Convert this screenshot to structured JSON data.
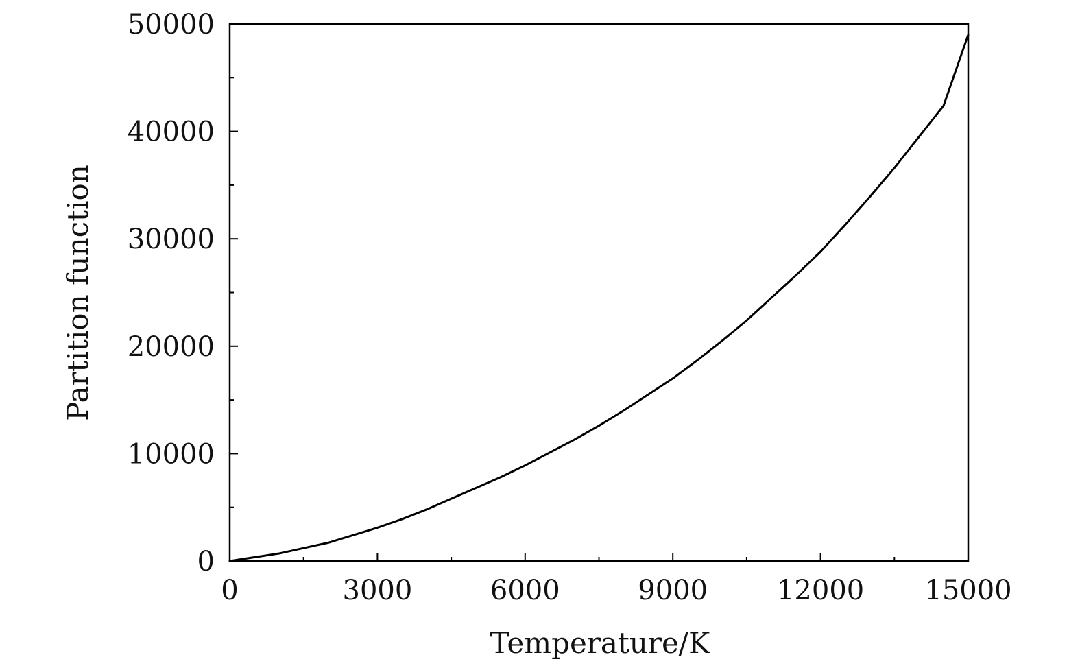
{
  "chart_data": {
    "type": "line",
    "title": "",
    "xlabel": "Temperature/K",
    "ylabel": "Partition function",
    "xlim": [
      0,
      15000
    ],
    "ylim": [
      0,
      50000
    ],
    "x_ticks": [
      0,
      3000,
      6000,
      9000,
      12000,
      15000
    ],
    "y_ticks": [
      0,
      10000,
      20000,
      30000,
      40000,
      50000
    ],
    "x_minor_tick_step": 1500,
    "y_minor_tick_step": 5000,
    "grid": false,
    "legend": "none",
    "line_color": "#000000",
    "series": [
      {
        "x": [
          0,
          1000,
          1500,
          2000,
          2500,
          3000,
          3500,
          4000,
          4500,
          5000,
          5500,
          6000,
          6500,
          7000,
          7500,
          8000,
          8500,
          9000,
          9500,
          10000,
          10500,
          11000,
          11500,
          12000,
          12500,
          13000,
          13500,
          14000,
          14500,
          15000
        ],
        "values": [
          0,
          700,
          1200,
          1700,
          2400,
          3100,
          3900,
          4800,
          5800,
          6800,
          7800,
          8900,
          10100,
          11300,
          12600,
          14000,
          15500,
          17000,
          18700,
          20500,
          22400,
          24500,
          26600,
          28800,
          31300,
          33900,
          36600,
          39500,
          42400,
          49000
        ]
      }
    ]
  }
}
